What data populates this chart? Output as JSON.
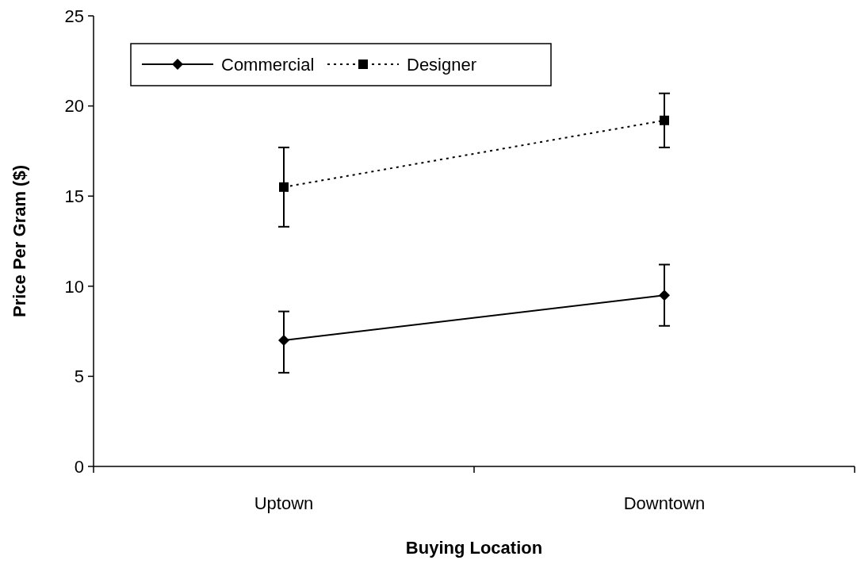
{
  "chart_data": {
    "type": "line",
    "xlabel": "Buying Location",
    "ylabel": "Price Per Gram ($)",
    "categories": [
      "Uptown",
      "Downtown"
    ],
    "series": [
      {
        "name": "Commercial",
        "color": "#000000",
        "values": [
          7.0,
          9.5
        ],
        "errors": [
          [
            5.2,
            8.6
          ],
          [
            7.8,
            11.2
          ]
        ],
        "marker": "diamond",
        "line_style": "solid"
      },
      {
        "name": "Designer",
        "color": "#000000",
        "values": [
          15.5,
          19.2
        ],
        "errors": [
          [
            13.3,
            17.7
          ],
          [
            17.7,
            20.7
          ]
        ],
        "marker": "square",
        "line_style": "dotted"
      }
    ],
    "ylim": [
      0,
      25
    ],
    "yticks": [
      0,
      5,
      10,
      15,
      20,
      25
    ],
    "grid": false,
    "legend": "top left"
  }
}
